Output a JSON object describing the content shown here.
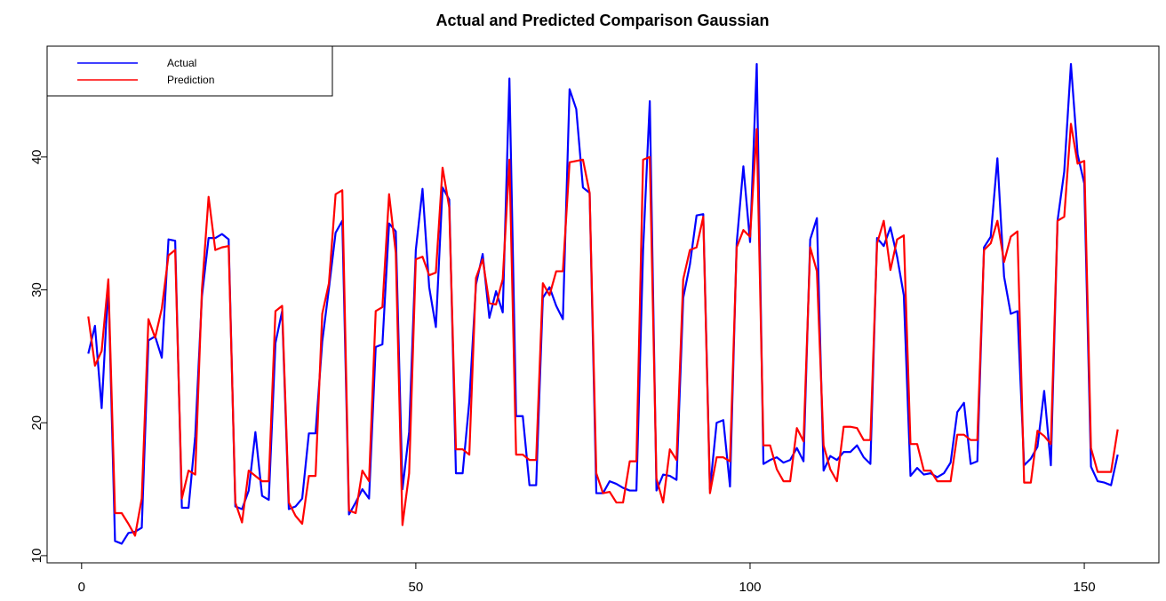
{
  "chart_data": {
    "type": "line",
    "title": "Actual and Predicted Comparison Gaussian",
    "x": [
      1,
      2,
      3,
      4,
      5,
      6,
      7,
      8,
      9,
      10,
      11,
      12,
      13,
      14,
      15,
      16,
      17,
      18,
      19,
      20,
      21,
      22,
      23,
      24,
      25,
      26,
      27,
      28,
      29,
      30,
      31,
      32,
      33,
      34,
      35,
      36,
      37,
      38,
      39,
      40,
      41,
      42,
      43,
      44,
      45,
      46,
      47,
      48,
      49,
      50,
      51,
      52,
      53,
      54,
      55,
      56,
      57,
      58,
      59,
      60,
      61,
      62,
      63,
      64,
      65,
      66,
      67,
      68,
      69,
      70,
      71,
      72,
      73,
      74,
      75,
      76,
      77,
      78,
      79,
      80,
      81,
      82,
      83,
      84,
      85,
      86,
      87,
      88,
      89,
      90,
      91,
      92,
      93,
      94,
      95,
      96,
      97,
      98,
      99,
      100,
      101,
      102,
      103,
      104,
      105,
      106,
      107,
      108,
      109,
      110,
      111,
      112,
      113,
      114,
      115,
      116,
      117,
      118,
      119,
      120,
      121,
      122,
      123,
      124,
      125,
      126,
      127,
      128,
      129,
      130,
      131,
      132,
      133,
      134,
      135,
      136,
      137,
      138,
      139,
      140,
      141,
      142,
      143,
      144,
      145,
      146,
      147,
      148,
      149,
      150,
      151,
      152,
      153,
      154,
      155
    ],
    "series": [
      {
        "name": "Actual",
        "color": "#0000ff",
        "values": [
          25.2,
          27.3,
          21.1,
          30.5,
          11.1,
          10.9,
          11.7,
          11.8,
          12.1,
          26.2,
          26.5,
          24.9,
          33.8,
          33.7,
          13.6,
          13.6,
          19.0,
          29.5,
          33.9,
          33.9,
          34.2,
          33.8,
          13.7,
          13.5,
          14.9,
          19.3,
          14.5,
          14.2,
          26.0,
          28.4,
          13.5,
          13.7,
          14.3,
          19.2,
          19.2,
          26.1,
          30.1,
          34.3,
          35.2,
          13.1,
          14.0,
          15.0,
          14.3,
          25.7,
          25.9,
          35.0,
          34.4,
          15.0,
          19.3,
          33.0,
          37.6,
          30.2,
          27.2,
          37.7,
          36.8,
          16.2,
          16.2,
          21.6,
          30.4,
          32.7,
          27.9,
          29.9,
          28.3,
          45.9,
          20.5,
          20.5,
          15.3,
          15.3,
          29.4,
          30.2,
          28.8,
          27.8,
          45.1,
          43.6,
          37.7,
          37.3,
          14.7,
          14.7,
          15.6,
          15.4,
          15.1,
          14.9,
          14.9,
          33.0,
          44.2,
          14.9,
          16.1,
          16.0,
          15.7,
          29.4,
          31.9,
          35.6,
          35.7,
          15.0,
          20.0,
          20.2,
          15.2,
          33.5,
          39.3,
          33.6,
          47.0,
          16.9,
          17.2,
          17.4,
          17.0,
          17.2,
          18.1,
          17.1,
          33.8,
          35.4,
          16.4,
          17.5,
          17.2,
          17.8,
          17.8,
          18.3,
          17.4,
          16.9,
          33.9,
          33.3,
          34.7,
          32.5,
          29.6,
          16.0,
          16.6,
          16.1,
          16.2,
          15.9,
          16.2,
          17.0,
          20.8,
          21.5,
          16.9,
          17.1,
          33.2,
          34.0,
          39.9,
          31.0,
          28.2,
          28.4,
          16.8,
          17.3,
          18.2,
          22.4,
          16.8,
          35.2,
          38.9,
          47.0,
          40.2,
          38.0,
          16.7,
          15.6,
          15.5,
          15.3,
          17.6
        ]
      },
      {
        "name": "Prediction",
        "color": "#ff0000",
        "values": [
          28.0,
          24.3,
          25.4,
          30.8,
          13.2,
          13.2,
          12.4,
          11.5,
          14.3,
          27.8,
          26.4,
          28.6,
          32.6,
          33.0,
          14.3,
          16.4,
          16.1,
          30.0,
          37.0,
          33.0,
          33.2,
          33.3,
          14.0,
          12.5,
          16.4,
          16.0,
          15.6,
          15.6,
          28.4,
          28.8,
          14.0,
          13.0,
          12.4,
          16.0,
          16.0,
          28.2,
          30.5,
          37.2,
          37.5,
          13.4,
          13.2,
          16.4,
          15.6,
          28.4,
          28.7,
          37.2,
          32.8,
          12.3,
          16.2,
          32.3,
          32.5,
          31.1,
          31.3,
          39.2,
          36.2,
          18.0,
          18.0,
          17.6,
          30.9,
          32.3,
          29.0,
          28.9,
          30.8,
          39.8,
          17.6,
          17.6,
          17.2,
          17.2,
          30.5,
          29.6,
          31.4,
          31.4,
          39.6,
          39.7,
          39.8,
          37.3,
          16.2,
          14.7,
          14.8,
          14.0,
          14.0,
          17.1,
          17.1,
          39.8,
          40.0,
          15.8,
          14.0,
          18.0,
          17.2,
          30.8,
          33.0,
          33.2,
          35.5,
          14.7,
          17.4,
          17.4,
          17.1,
          33.2,
          34.5,
          34.0,
          42.1,
          18.3,
          18.3,
          16.5,
          15.6,
          15.6,
          19.6,
          18.6,
          33.2,
          31.4,
          18.3,
          16.5,
          15.6,
          19.7,
          19.7,
          19.6,
          18.7,
          18.7,
          33.5,
          35.2,
          31.5,
          33.8,
          34.1,
          18.4,
          18.4,
          16.4,
          16.4,
          15.6,
          15.6,
          15.6,
          19.1,
          19.1,
          18.7,
          18.7,
          33.0,
          33.5,
          35.2,
          32.1,
          34.0,
          34.4,
          15.5,
          15.5,
          19.4,
          19.0,
          18.4,
          35.2,
          35.5,
          42.5,
          39.5,
          39.7,
          18.1,
          16.3,
          16.3,
          16.3,
          19.5
        ]
      }
    ],
    "xlim": [
      -5.16,
      161.16
    ],
    "xticks": [
      0,
      50,
      100,
      150
    ],
    "ylim": [
      9.46,
      48.34
    ],
    "yticks": [
      10,
      20,
      30,
      40
    ],
    "legend": "top-left"
  }
}
